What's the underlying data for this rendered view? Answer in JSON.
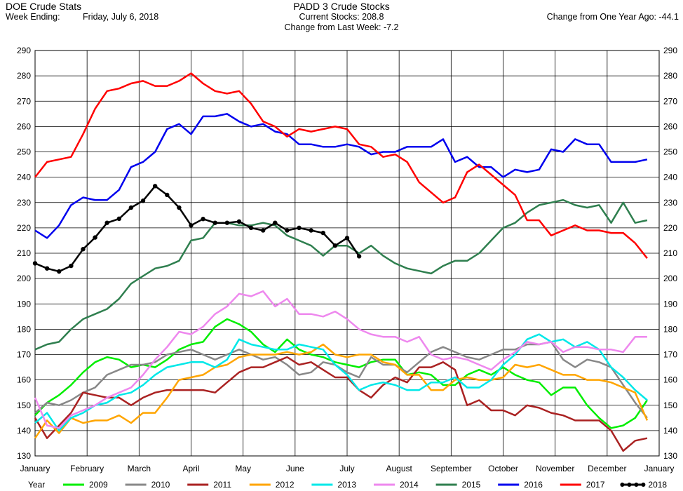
{
  "header": {
    "left_title": "DOE Crude Stats",
    "week_label": "Week Ending:",
    "week_value": "Friday, July 6, 2018",
    "center_title": "PADD 3 Crude Stocks",
    "current_stocks": "Current Stocks: 208.8",
    "change_last_week": "Change from Last Week:  -7.2",
    "change_year_ago": "Change from One Year Ago: -44.1"
  },
  "chart_data": {
    "type": "line",
    "title": "PADD 3 Crude Stocks",
    "x_ticks": [
      "January",
      "February",
      "March",
      "April",
      "May",
      "June",
      "July",
      "August",
      "September",
      "October",
      "November",
      "December",
      "January"
    ],
    "x_range": [
      0,
      52
    ],
    "ylim": [
      130,
      290
    ],
    "y_ticks": [
      130,
      140,
      150,
      160,
      170,
      180,
      190,
      200,
      210,
      220,
      230,
      240,
      250,
      260,
      270,
      280,
      290
    ],
    "grid": true,
    "legend_title": "Year",
    "legend_position": "bottom",
    "series": [
      {
        "name": "2009",
        "color": "#00ee00",
        "x": [
          0,
          1,
          2,
          3,
          4,
          5,
          6,
          7,
          8,
          9,
          10,
          11,
          12,
          13,
          14,
          15,
          16,
          17,
          18,
          19,
          20,
          21,
          22,
          23,
          24,
          25,
          26,
          27,
          28,
          29,
          30,
          31,
          32,
          33,
          34,
          35,
          36,
          37,
          38,
          39,
          40,
          41,
          42,
          43,
          44,
          45,
          46,
          47,
          48,
          49,
          50,
          51
        ],
        "values": [
          146,
          151,
          154,
          158,
          163,
          167,
          169,
          168,
          165,
          166,
          165,
          168,
          172,
          174,
          175,
          181,
          184,
          182,
          179,
          174,
          171,
          176,
          172,
          170,
          169,
          167,
          166,
          165,
          167,
          168,
          168,
          162,
          163,
          162,
          158,
          158,
          162,
          164,
          162,
          165,
          162,
          160,
          159,
          154,
          157,
          157,
          150,
          145,
          141,
          142,
          145,
          152
        ]
      },
      {
        "name": "2010",
        "color": "#888888",
        "x": [
          0,
          1,
          2,
          3,
          4,
          5,
          6,
          7,
          8,
          9,
          10,
          11,
          12,
          13,
          14,
          15,
          16,
          17,
          18,
          19,
          20,
          21,
          22,
          23,
          24,
          25,
          26,
          27,
          28,
          29,
          30,
          31,
          32,
          33,
          34,
          35,
          36,
          37,
          38,
          39,
          40,
          41,
          42,
          43,
          44,
          45,
          46,
          47,
          48,
          49,
          50,
          51
        ],
        "values": [
          147,
          151,
          150,
          152,
          155,
          157,
          162,
          164,
          166,
          166,
          167,
          170,
          171,
          172,
          170,
          168,
          170,
          172,
          170,
          168,
          169,
          166,
          162,
          163,
          167,
          166,
          163,
          161,
          169,
          166,
          166,
          163,
          167,
          171,
          173,
          171,
          169,
          168,
          170,
          172,
          172,
          174,
          174,
          175,
          168,
          165,
          168,
          167,
          165,
          158,
          151,
          145
        ]
      },
      {
        "name": "2011",
        "color": "#aa2222",
        "x": [
          0,
          1,
          2,
          3,
          4,
          5,
          6,
          7,
          8,
          9,
          10,
          11,
          12,
          13,
          14,
          15,
          16,
          17,
          18,
          19,
          20,
          21,
          22,
          23,
          24,
          25,
          26,
          27,
          28,
          29,
          30,
          31,
          32,
          33,
          34,
          35,
          36,
          37,
          38,
          39,
          40,
          41,
          42,
          43,
          44,
          45,
          46,
          47,
          48,
          49,
          50,
          51
        ],
        "values": [
          145,
          137,
          142,
          147,
          155,
          154,
          153,
          153,
          150,
          153,
          155,
          156,
          156,
          156,
          156,
          155,
          159,
          163,
          165,
          165,
          167,
          169,
          166,
          167,
          164,
          161,
          161,
          156,
          153,
          158,
          161,
          159,
          165,
          165,
          167,
          164,
          150,
          152,
          148,
          148,
          146,
          150,
          149,
          147,
          146,
          144,
          144,
          144,
          140,
          132,
          136,
          137
        ]
      },
      {
        "name": "2012",
        "color": "#ffa500",
        "x": [
          0,
          1,
          2,
          3,
          4,
          5,
          6,
          7,
          8,
          9,
          10,
          11,
          12,
          13,
          14,
          15,
          16,
          17,
          18,
          19,
          20,
          21,
          22,
          23,
          24,
          25,
          26,
          27,
          28,
          29,
          30,
          31,
          32,
          33,
          34,
          35,
          36,
          37,
          38,
          39,
          40,
          41,
          42,
          43,
          44,
          45,
          46,
          47,
          48,
          49,
          50,
          51
        ],
        "values": [
          137,
          144,
          139,
          145,
          143,
          144,
          144,
          146,
          143,
          147,
          147,
          153,
          160,
          161,
          162,
          165,
          166,
          169,
          170,
          170,
          170,
          171,
          170,
          171,
          174,
          170,
          169,
          170,
          170,
          167,
          166,
          162,
          162,
          156,
          156,
          160,
          161,
          160,
          160,
          161,
          166,
          165,
          166,
          164,
          162,
          162,
          160,
          160,
          159,
          157,
          155,
          144
        ]
      },
      {
        "name": "2013",
        "color": "#00e8e8",
        "x": [
          0,
          1,
          2,
          3,
          4,
          5,
          6,
          7,
          8,
          9,
          10,
          11,
          12,
          13,
          14,
          15,
          16,
          17,
          18,
          19,
          20,
          21,
          22,
          23,
          24,
          25,
          26,
          27,
          28,
          29,
          30,
          31,
          32,
          33,
          34,
          35,
          36,
          37,
          38,
          39,
          40,
          41,
          42,
          43,
          44,
          45,
          46,
          47,
          48,
          49,
          50,
          51
        ],
        "values": [
          143,
          147,
          140,
          145,
          147,
          150,
          151,
          154,
          155,
          158,
          162,
          165,
          166,
          167,
          167,
          165,
          168,
          176,
          174,
          173,
          172,
          172,
          174,
          173,
          172,
          166,
          162,
          156,
          158,
          159,
          158,
          156,
          156,
          159,
          159,
          161,
          157,
          157,
          160,
          166,
          170,
          176,
          178,
          175,
          176,
          173,
          175,
          172,
          165,
          161,
          156,
          152
        ]
      },
      {
        "name": "2014",
        "color": "#ee88ee",
        "x": [
          0,
          1,
          2,
          3,
          4,
          5,
          6,
          7,
          8,
          9,
          10,
          11,
          12,
          13,
          14,
          15,
          16,
          17,
          18,
          19,
          20,
          21,
          22,
          23,
          24,
          25,
          26,
          27,
          28,
          29,
          30,
          31,
          32,
          33,
          34,
          35,
          36,
          37,
          38,
          39,
          40,
          41,
          42,
          43,
          44,
          45,
          46,
          47,
          48,
          49,
          50,
          51
        ],
        "values": [
          153,
          142,
          141,
          146,
          148,
          150,
          153,
          155,
          157,
          162,
          168,
          173,
          179,
          178,
          181,
          186,
          189,
          194,
          193,
          195,
          189,
          192,
          186,
          186,
          185,
          187,
          184,
          180,
          178,
          177,
          177,
          175,
          177,
          170,
          168,
          169,
          168,
          166,
          164,
          168,
          171,
          175,
          174,
          175,
          171,
          173,
          173,
          172,
          172,
          171,
          177,
          177
        ]
      },
      {
        "name": "2015",
        "color": "#2f7f4f",
        "x": [
          0,
          1,
          2,
          3,
          4,
          5,
          6,
          7,
          8,
          9,
          10,
          11,
          12,
          13,
          14,
          15,
          16,
          17,
          18,
          19,
          20,
          21,
          22,
          23,
          24,
          25,
          26,
          27,
          28,
          29,
          30,
          31,
          32,
          33,
          34,
          35,
          36,
          37,
          38,
          39,
          40,
          41,
          42,
          43,
          44,
          45,
          46,
          47,
          48,
          49,
          50,
          51
        ],
        "values": [
          172,
          174,
          175,
          180,
          184,
          186,
          188,
          192,
          198,
          201,
          204,
          205,
          207,
          215,
          216,
          222,
          222,
          221,
          221,
          222,
          221,
          217,
          215,
          213,
          209,
          213,
          213,
          210,
          213,
          209,
          206,
          204,
          203,
          202,
          205,
          207,
          207,
          210,
          215,
          220,
          222,
          226,
          229,
          230,
          231,
          229,
          228,
          229,
          222,
          230,
          222,
          223
        ]
      },
      {
        "name": "2016",
        "color": "#0000ee",
        "x": [
          0,
          1,
          2,
          3,
          4,
          5,
          6,
          7,
          8,
          9,
          10,
          11,
          12,
          13,
          14,
          15,
          16,
          17,
          18,
          19,
          20,
          21,
          22,
          23,
          24,
          25,
          26,
          27,
          28,
          29,
          30,
          31,
          32,
          33,
          34,
          35,
          36,
          37,
          38,
          39,
          40,
          41,
          42,
          43,
          44,
          45,
          46,
          47,
          48,
          49,
          50,
          51
        ],
        "values": [
          219,
          216,
          221,
          229,
          232,
          231,
          231,
          235,
          244,
          246,
          250,
          259,
          261,
          257,
          264,
          264,
          265,
          262,
          260,
          261,
          258,
          257,
          253,
          253,
          252,
          252,
          253,
          252,
          249,
          250,
          250,
          252,
          252,
          252,
          255,
          246,
          248,
          244,
          244,
          240,
          243,
          242,
          243,
          251,
          250,
          255,
          253,
          253,
          246,
          246,
          246,
          247
        ]
      },
      {
        "name": "2017",
        "color": "#ff0000",
        "x": [
          0,
          1,
          2,
          3,
          4,
          5,
          6,
          7,
          8,
          9,
          10,
          11,
          12,
          13,
          14,
          15,
          16,
          17,
          18,
          19,
          20,
          21,
          22,
          23,
          24,
          25,
          26,
          27,
          28,
          29,
          30,
          31,
          32,
          33,
          34,
          35,
          36,
          37,
          38,
          39,
          40,
          41,
          42,
          43,
          44,
          45,
          46,
          47,
          48,
          49,
          50,
          51
        ],
        "values": [
          240,
          246,
          247,
          248,
          257,
          267,
          274,
          275,
          277,
          278,
          276,
          276,
          278,
          281,
          277,
          274,
          273,
          274,
          269,
          262,
          260,
          256,
          259,
          258,
          259,
          260,
          259,
          253,
          252,
          248,
          249,
          246,
          238,
          234,
          230,
          232,
          242,
          245,
          241,
          237,
          233,
          223,
          223,
          217,
          219,
          221,
          219,
          219,
          218,
          218,
          214,
          208
        ]
      },
      {
        "name": "2018",
        "color": "#000000",
        "markers": true,
        "x": [
          0,
          1,
          2,
          3,
          4,
          5,
          6,
          7,
          8,
          9,
          10,
          11,
          12,
          13,
          14,
          15,
          16,
          17,
          18,
          19,
          20,
          21,
          22,
          23,
          24,
          25,
          26,
          27
        ],
        "values": [
          206,
          204,
          202.8,
          205,
          211.6,
          216.2,
          222,
          223.6,
          228,
          230.7,
          236.5,
          233,
          228,
          221,
          223.5,
          222,
          222,
          222.5,
          220,
          219,
          222,
          219,
          220,
          219,
          218,
          213,
          216,
          208.8
        ]
      }
    ]
  }
}
